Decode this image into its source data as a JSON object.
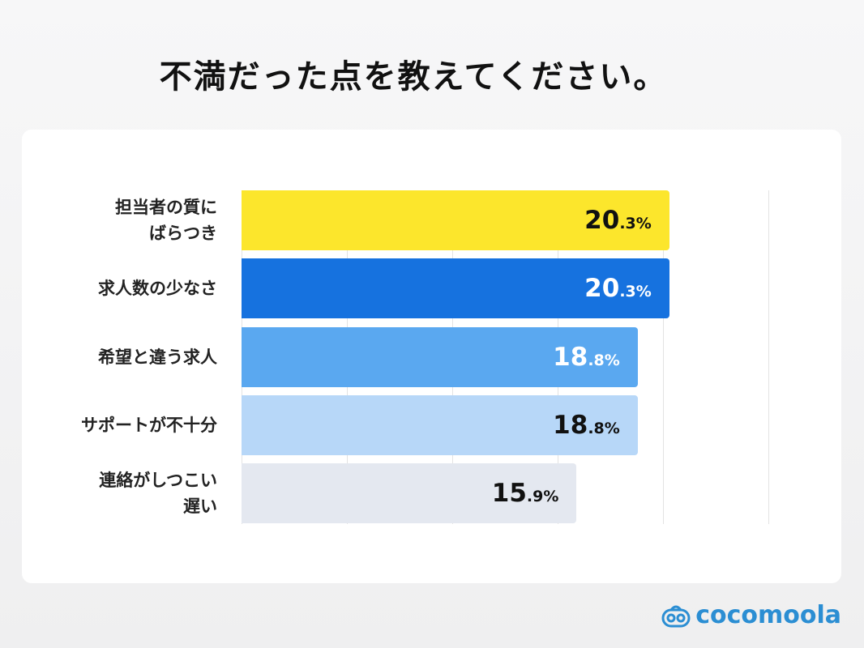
{
  "chart_data": {
    "type": "bar",
    "orientation": "horizontal",
    "title": "不満だった点を教えてください。",
    "categories": [
      "担当者の質に\nばらつき",
      "求人数の少なさ",
      "希望と違う求人",
      "サポートが不十分",
      "連絡がしつこい\n遅い"
    ],
    "values": [
      20.3,
      20.3,
      18.8,
      18.8,
      15.9
    ],
    "value_labels": [
      "20.3%",
      "20.3%",
      "18.8%",
      "18.8%",
      "15.9%"
    ],
    "colors": [
      "#fce62c",
      "#1672df",
      "#5aa8f0",
      "#b7d7f8",
      "#e4e8f0"
    ],
    "label_colors": [
      "#111111",
      "#ffffff",
      "#ffffff",
      "#111111",
      "#111111"
    ],
    "xlim": [
      0,
      25
    ],
    "xticks": [
      0,
      5,
      10,
      15,
      20,
      25
    ],
    "grid": true
  },
  "logo": "cocomoola"
}
